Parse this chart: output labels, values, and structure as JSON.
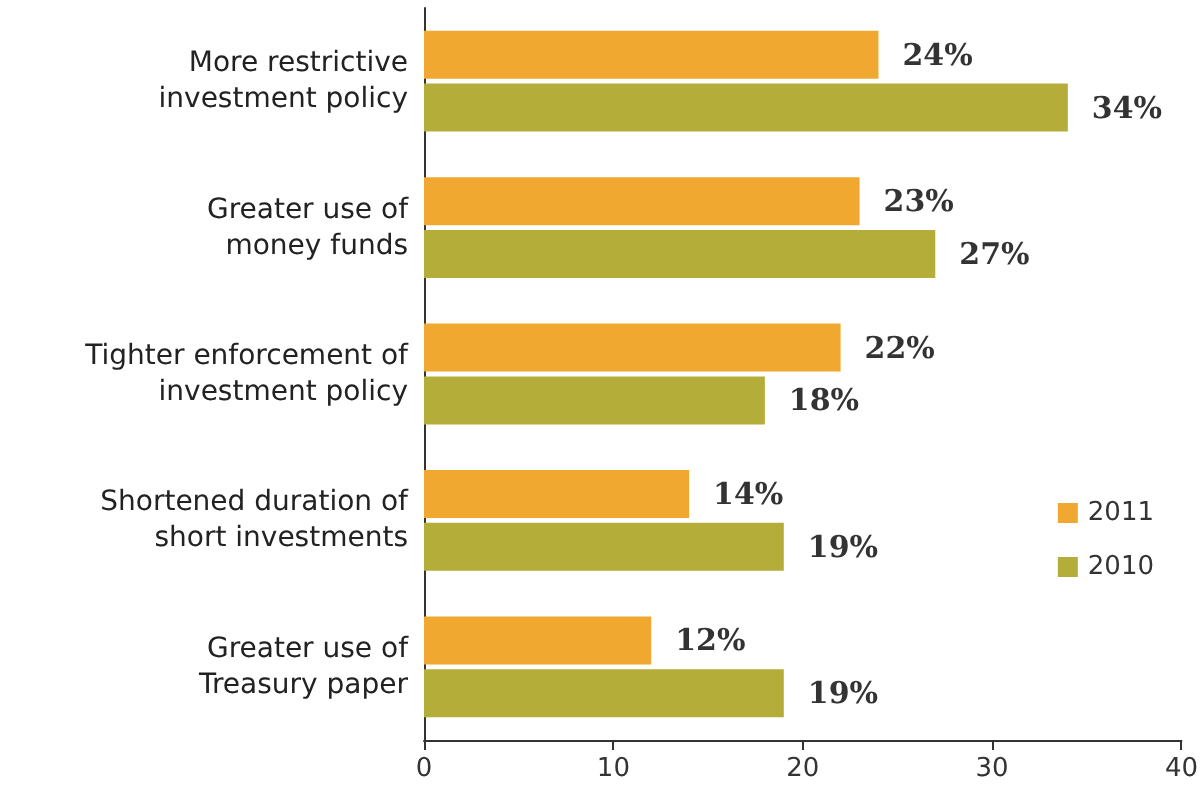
{
  "chart_data": {
    "type": "bar",
    "orientation": "horizontal",
    "categories": [
      "More restrictive\ninvestment policy",
      "Greater use of\nmoney funds",
      "Tighter enforcement of\ninvestment policy",
      "Shortened duration of\nshort investments",
      "Greater use of\nTreasury paper"
    ],
    "series": [
      {
        "name": "2011",
        "color": "#f0a830",
        "values": [
          24,
          23,
          22,
          14,
          12
        ],
        "value_labels": [
          "24%",
          "23%",
          "22%",
          "14%",
          "12%"
        ]
      },
      {
        "name": "2010",
        "color": "#b5ad3a",
        "values": [
          34,
          27,
          18,
          19,
          19
        ],
        "value_labels": [
          "34%",
          "27%",
          "18%",
          "19%",
          "19%"
        ]
      }
    ],
    "xlim": [
      0,
      40
    ],
    "xticks": [
      0,
      10,
      20,
      30,
      40
    ],
    "grid": false,
    "legend": "right"
  }
}
